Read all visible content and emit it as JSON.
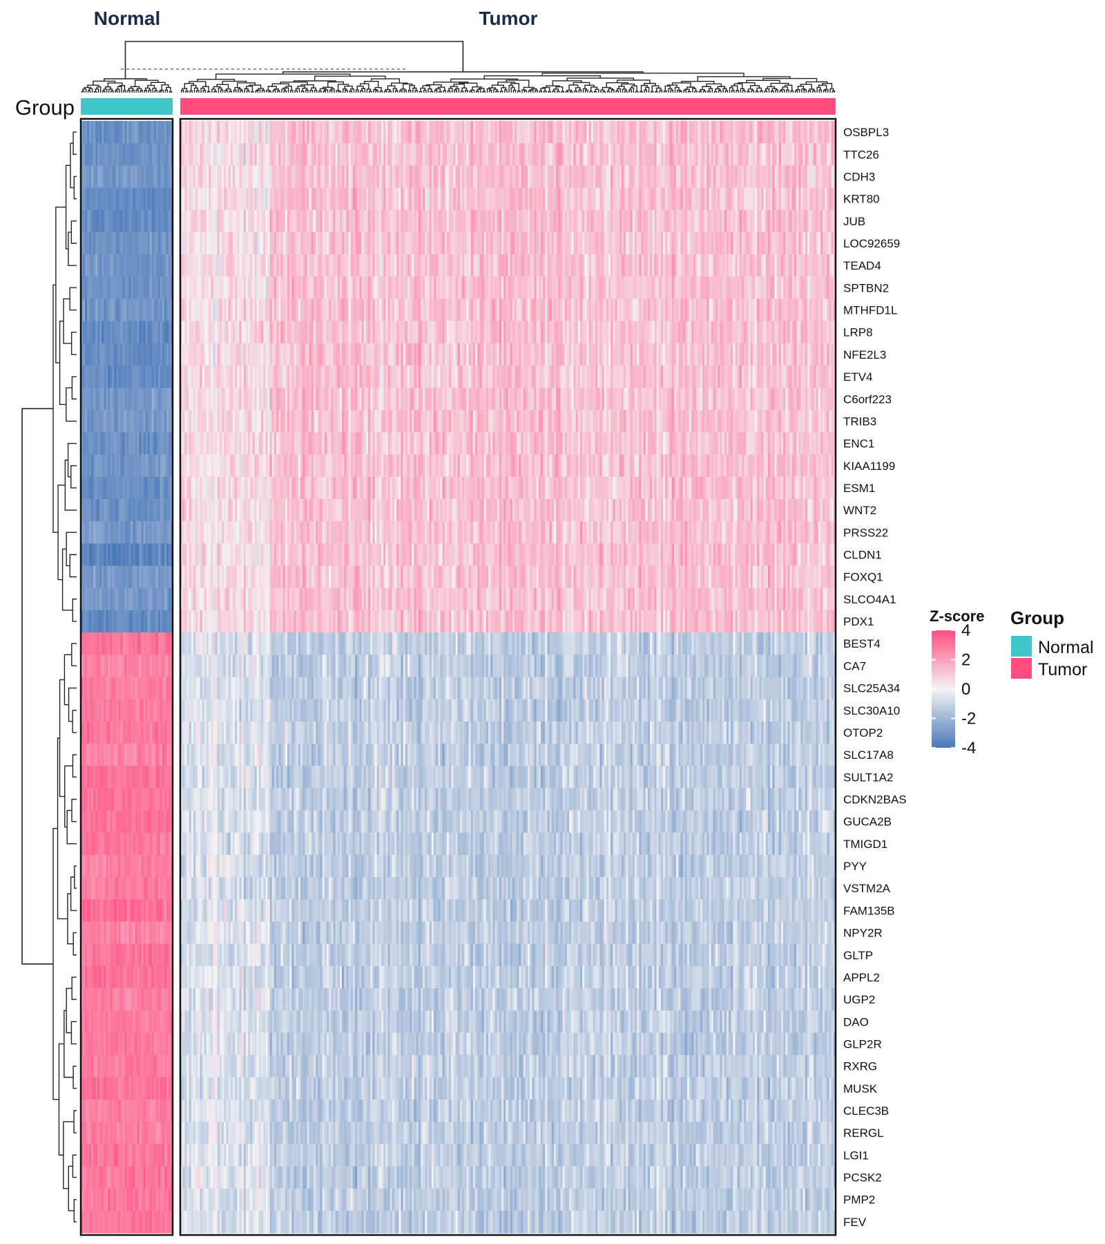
{
  "chart_data": {
    "type": "heatmap",
    "annotation_label": "Group",
    "group_titles": [
      "Normal",
      "Tumor"
    ],
    "groups": [
      {
        "name": "Normal",
        "color": "#3EC6C9",
        "n_samples": 44
      },
      {
        "name": "Tumor",
        "color": "#FF4D80",
        "n_samples": 300
      }
    ],
    "genes_up_in_tumor": [
      "OSBPL3",
      "TTC26",
      "CDH3",
      "KRT80",
      "JUB",
      "LOC92659",
      "TEAD4",
      "SPTBN2",
      "MTHFD1L",
      "LRP8",
      "NFE2L3",
      "ETV4",
      "C6orf223",
      "TRIB3",
      "ENC1",
      "KIAA1199",
      "ESM1",
      "WNT2",
      "PRSS22",
      "CLDN1",
      "FOXQ1",
      "SLCO4A1",
      "PDX1"
    ],
    "genes_down_in_tumor": [
      "BEST4",
      "CA7",
      "SLC25A34",
      "SLC30A10",
      "OTOP2",
      "SLC17A8",
      "SULT1A2",
      "CDKN2BAS",
      "GUCA2B",
      "TMIGD1",
      "PYY",
      "VSTM2A",
      "FAM135B",
      "NPY2R",
      "GLTP",
      "APPL2",
      "UGP2",
      "DAO",
      "GLP2R",
      "RXRG",
      "MUSK",
      "CLEC3B",
      "RERGL",
      "LGI1",
      "PCSK2",
      "PMP2",
      "FEV"
    ],
    "pattern": {
      "up_in_tumor": {
        "Normal_mean_z": -3.0,
        "Tumor_mean_z": 1.0
      },
      "down_in_tumor": {
        "Normal_mean_z": 2.8,
        "Tumor_mean_z": -1.0
      }
    },
    "colorscale": {
      "title": "Z-score",
      "range": [
        -4,
        4
      ],
      "ticks": [
        4,
        2,
        0,
        -2,
        -4
      ],
      "low_color": "#4A78B8",
      "mid_color": "#F4F4F4",
      "high_color": "#FF4D80"
    },
    "legend": {
      "title": "Group",
      "entries": [
        "Normal",
        "Tumor"
      ],
      "placement": "right"
    },
    "row_dendrogram": true,
    "column_dendrogram": true,
    "grid": false
  }
}
